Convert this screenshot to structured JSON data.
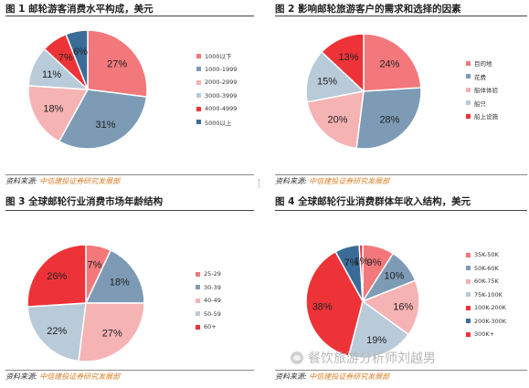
{
  "watermark": "餐饮旅游分析师刘越男",
  "colors": {
    "salmon": "#f2787b",
    "blue": "#7d9bb5",
    "pink": "#f6b3b4",
    "lightblue": "#b9cad8",
    "red": "#ee3338",
    "darkblue": "#3b6c98"
  },
  "panels": [
    {
      "title": "图 1 邮轮游客消费水平构成，美元",
      "source_prefix": "资料来源: ",
      "source_name": "中信建投证券研究发展部",
      "chart_data": {
        "type": "pie",
        "categories": [
          "1000以下",
          "1000-1999",
          "2000-2999",
          "3000-3999",
          "4000-4999",
          "5000以上"
        ],
        "values": [
          27,
          31,
          18,
          11,
          7,
          6
        ],
        "labels": [
          "27%",
          "31%",
          "18%",
          "11%",
          "7%",
          "6%"
        ],
        "colors": [
          "#f2787b",
          "#7d9bb5",
          "#f6b3b4",
          "#b9cad8",
          "#ee3338",
          "#3b6c98"
        ],
        "legend": "right"
      }
    },
    {
      "title": "图 2 影响邮轮旅游客户的需求和选择的因素",
      "source_prefix": "资料来源: ",
      "source_name": "中信建投证券研究发展部",
      "chart_data": {
        "type": "pie",
        "categories": [
          "目的地",
          "花费",
          "船体体验",
          "船只",
          "船上设施"
        ],
        "values": [
          24,
          28,
          20,
          15,
          13
        ],
        "labels": [
          "24%",
          "28%",
          "20%",
          "15%",
          "13%"
        ],
        "colors": [
          "#f2787b",
          "#7d9bb5",
          "#f6b3b4",
          "#b9cad8",
          "#ee3338"
        ],
        "legend": "right"
      }
    },
    {
      "title": "图 3 全球邮轮行业消费市场年龄结构",
      "source_prefix": "资料来源: ",
      "source_name": "中信建投证券研究发展部",
      "chart_data": {
        "type": "pie",
        "categories": [
          "25-29",
          "30-39",
          "40-49",
          "50-59",
          "60+"
        ],
        "values": [
          7,
          18,
          27,
          22,
          26
        ],
        "labels": [
          "7%",
          "18%",
          "27%",
          "22%",
          "26%"
        ],
        "colors": [
          "#f2787b",
          "#7d9bb5",
          "#f6b3b4",
          "#b9cad8",
          "#ee3338"
        ],
        "legend": "right"
      }
    },
    {
      "title": "图 4 全球邮轮行业消费群体年收入结构，美元",
      "source_prefix": "资料来源: ",
      "source_name": "中信建投证券研究发展部",
      "chart_data": {
        "type": "pie",
        "categories": [
          "35K-50K",
          "50K-60K",
          "60K-75K",
          "75K-100K",
          "100K-200K",
          "200K-300K",
          "300K+"
        ],
        "values": [
          9,
          10,
          16,
          19,
          38,
          7,
          1
        ],
        "labels": [
          "9%",
          "10%",
          "16%",
          "19%",
          "38%",
          "7%",
          "1%"
        ],
        "colors": [
          "#f2787b",
          "#7d9bb5",
          "#f6b3b4",
          "#b9cad8",
          "#ee3338",
          "#3b6c98",
          "#ee3338"
        ],
        "legend": "right"
      }
    }
  ]
}
